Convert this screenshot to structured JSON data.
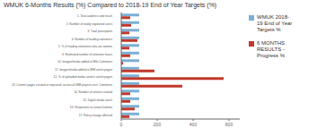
{
  "chart_data": {
    "type": "bar",
    "orientation": "horizontal",
    "title": "WMUK  6-Months Results (%) Compared to 2018-19 End of Year Targets (%)",
    "categories": [
      "1. Total audience and reach",
      "2. Number of newly registered users",
      "3. Total participants",
      "4. Number of leading volunteers",
      "5. % of leading volunteers who are women",
      "6. Estimated number of volunteer hours",
      "10. Images/media added to Wiki Commons",
      "11. Images/media added to WM article pages",
      "12. % of uploaded media used in article pages",
      "13. Content pages created or improved, across all WM projects excl. Commons",
      "14. Number of articles created",
      "15. Digital media reach",
      "16. Responses to contact/comms",
      "17. Policy change affected"
    ],
    "series": [
      {
        "name": "WMUK 2018-\n19 End of Year\nTargets %",
        "color": "#7bafd4",
        "values": [
          100,
          100,
          100,
          100,
          100,
          100,
          100,
          100,
          100,
          100,
          100,
          100,
          100,
          100
        ]
      },
      {
        "name": "6 MONTHS\nRESULTS -\nProgress %",
        "color": "#c0392b",
        "values": [
          50,
          55,
          45,
          90,
          45,
          50,
          10,
          185,
          570,
          340,
          50,
          50,
          75,
          45
        ]
      }
    ],
    "xlim": [
      0,
      660
    ],
    "xticks": [
      0,
      200,
      400,
      600
    ],
    "grid": false,
    "legend": "right"
  }
}
